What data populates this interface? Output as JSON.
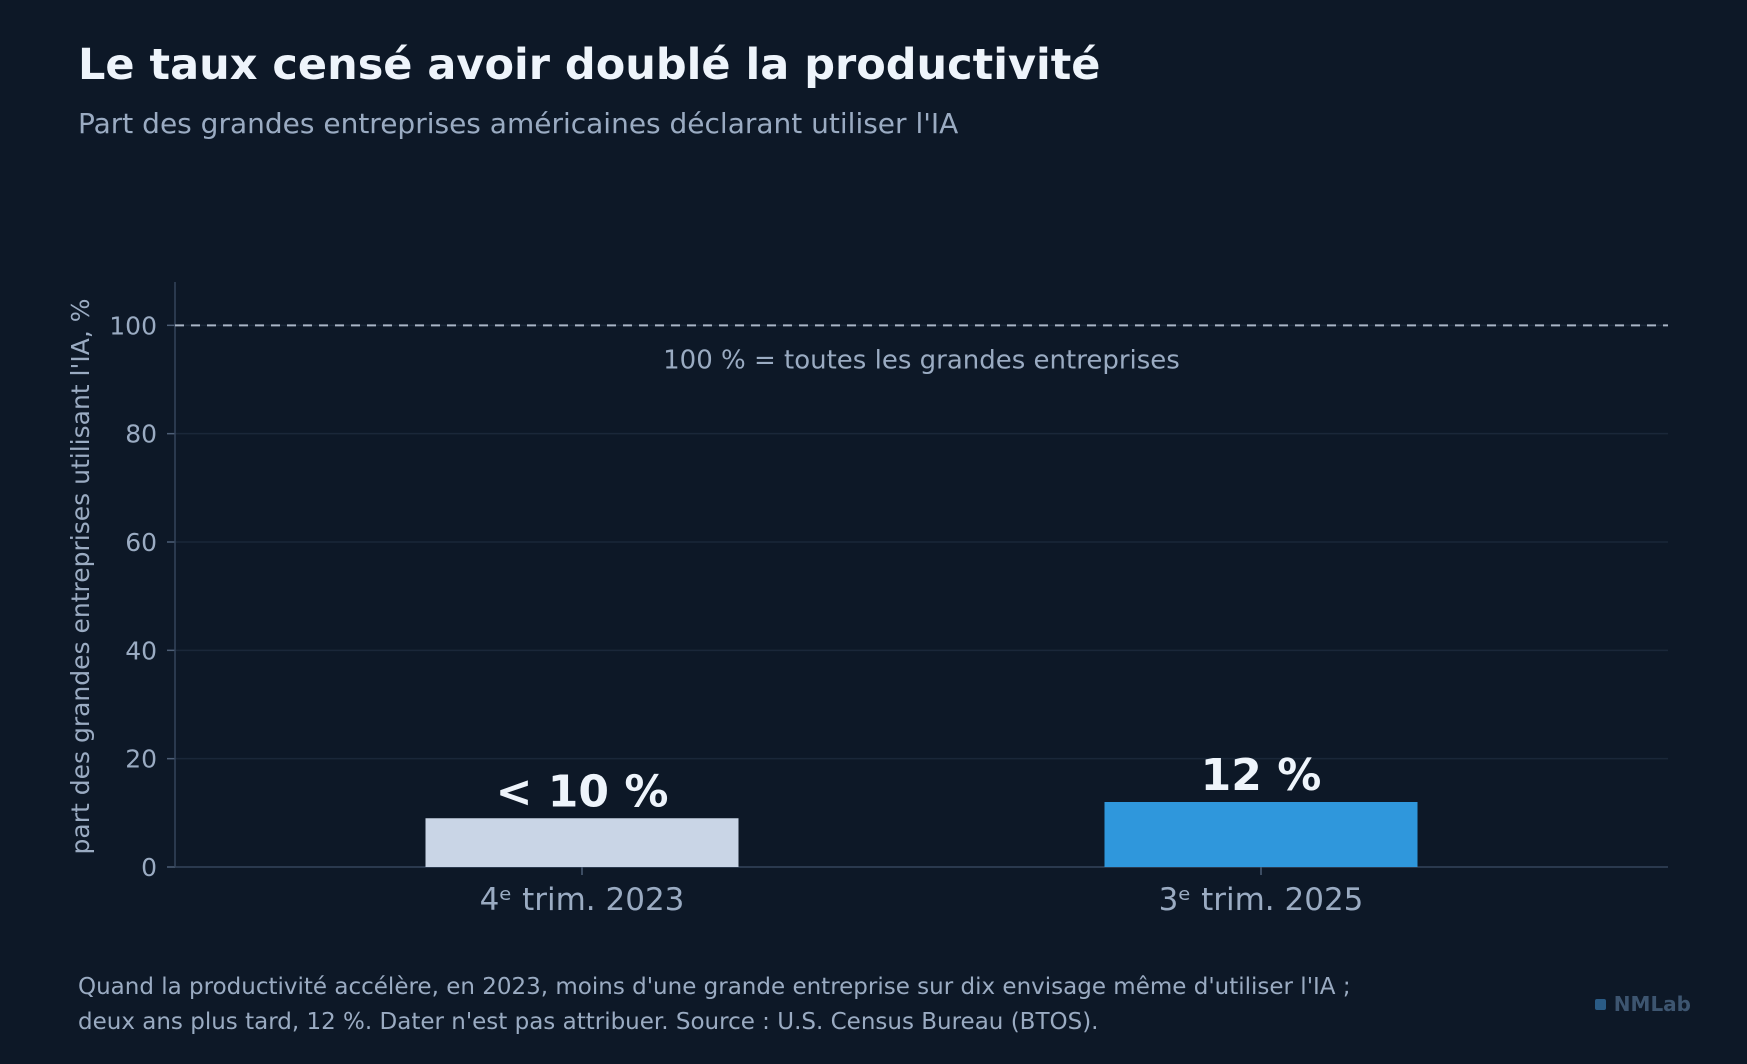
{
  "header": {
    "title": "Le taux censé avoir doublé la productivité",
    "subtitle": "Part des grandes entreprises américaines déclarant utiliser l'IA"
  },
  "chart_data": {
    "type": "bar",
    "categories": [
      "4ᵉ trim. 2023",
      "3ᵉ trim. 2025"
    ],
    "values": [
      9,
      12
    ],
    "data_labels": [
      "< 10 %",
      "12 %"
    ],
    "ylabel": "part des grandes entreprises utilisant l'IA, %",
    "ylim": [
      0,
      108
    ],
    "yticks": [
      "0",
      "20",
      "40",
      "60",
      "80",
      "100"
    ],
    "grid": true,
    "reference_line": {
      "value": 100,
      "label": "100 % = toutes les grandes entreprises"
    },
    "bar_colors": [
      "#c9d5e6",
      "#2f97dc"
    ]
  },
  "footer": {
    "note": "Quand la productivité accélère, en 2023, moins d'une grande entreprise sur dix envisage même d'utiliser l'IA ; deux ans plus tard, 12 %. Dater n'est pas attribuer. Source : U.S. Census Bureau (BTOS)."
  },
  "brand": {
    "name": "NMLab"
  }
}
